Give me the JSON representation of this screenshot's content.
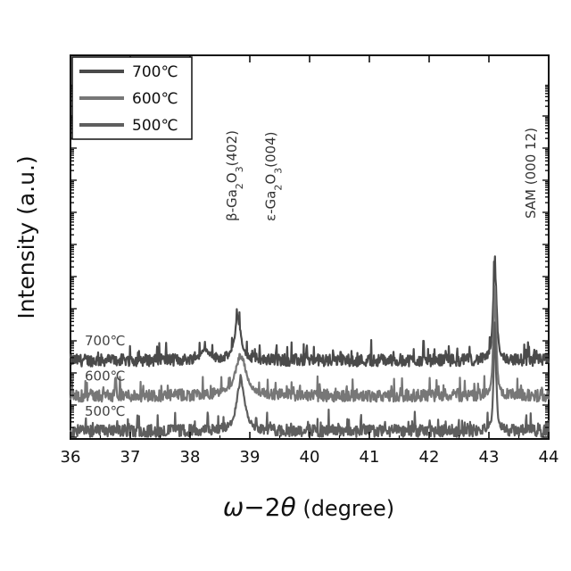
{
  "chart_data": {
    "type": "line",
    "xlabel_parts": [
      "ω",
      "−2",
      "θ",
      " (degree)"
    ],
    "ylabel": "Intensity (a.u.)",
    "xlim": [
      36,
      44
    ],
    "x_ticks": [
      "36",
      "37",
      "38",
      "39",
      "40",
      "41",
      "42",
      "43",
      "44"
    ],
    "y_scale": "log, vertically offset traces",
    "grid": false,
    "legend_position": "top-left",
    "series": [
      {
        "name": "700℃",
        "label": "700℃",
        "color": "#4a4a4a",
        "offset_decades": 2.2,
        "peaks": [
          {
            "x": 38.8,
            "height": 1.5,
            "width": 0.07
          },
          {
            "x": 38.25,
            "height": 0.5,
            "width": 0.09
          },
          {
            "x": 43.1,
            "height": 3.2,
            "width": 0.035
          }
        ]
      },
      {
        "name": "600℃",
        "label": "600℃",
        "color": "#777777",
        "offset_decades": 1.1,
        "peaks": [
          {
            "x": 38.85,
            "height": 1.45,
            "width": 0.12
          },
          {
            "x": 43.1,
            "height": 3.4,
            "width": 0.03
          }
        ]
      },
      {
        "name": "500℃",
        "label": "500℃",
        "color": "#5e5e5e",
        "offset_decades": 0.0,
        "peaks": [
          {
            "x": 38.85,
            "height": 1.75,
            "width": 0.09
          },
          {
            "x": 43.1,
            "height": 3.6,
            "width": 0.025
          }
        ]
      }
    ],
    "annotations": [
      {
        "id": "beta",
        "prefix": "β-Ga",
        "sub1": "2",
        "mid": "O",
        "sub2": "3",
        "suffix": "(402)",
        "x": 38.7,
        "bar_over": "2"
      },
      {
        "id": "eps",
        "prefix": "ε-Ga",
        "sub1": "2",
        "mid": "O",
        "sub2": "3",
        "suffix": "(004)",
        "x": 39.35
      },
      {
        "id": "sam",
        "text": "SAM (000 12)",
        "x": 43.7
      }
    ]
  }
}
